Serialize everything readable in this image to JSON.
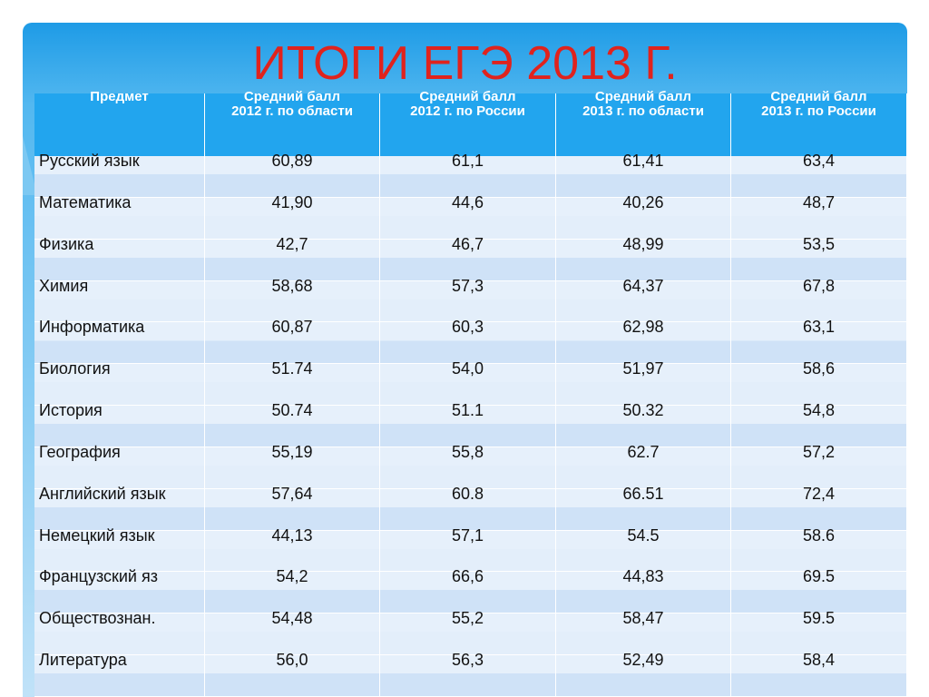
{
  "title": "ИТОГИ ЕГЭ 2013 Г.",
  "table": {
    "header": [
      [
        "Предмет"
      ],
      [
        "Средний балл",
        "2012 г. по области"
      ],
      [
        "Средний балл",
        "2012 г. по России"
      ],
      [
        "Средний балл",
        "2013 г. по области"
      ],
      [
        "Средний балл",
        "2013 г. по России"
      ]
    ],
    "rows": [
      [
        "Русский язык",
        "60,89",
        "61,1",
        "61,41",
        "63,4"
      ],
      [
        "Математика",
        "41,90",
        "44,6",
        "40,26",
        "48,7"
      ],
      [
        "Физика",
        "42,7",
        "46,7",
        "48,99",
        "53,5"
      ],
      [
        "Химия",
        "58,68",
        "57,3",
        "64,37",
        "67,8"
      ],
      [
        "Информатика",
        "60,87",
        "60,3",
        "62,98",
        "63,1"
      ],
      [
        "Биология",
        "51.74",
        "54,0",
        "51,97",
        "58,6"
      ],
      [
        "История",
        "50.74",
        "51.1",
        "50.32",
        "54,8"
      ],
      [
        "География",
        "55,19",
        "55,8",
        "62.7",
        "57,2"
      ],
      [
        "Английский язык",
        "57,64",
        "60.8",
        "66.51",
        "72,4"
      ],
      [
        "Немецкий язык",
        "44,13",
        "57,1",
        "54.5",
        "58.6"
      ],
      [
        "Французский яз",
        "54,2",
        "66,6",
        "44,83",
        "69.5"
      ],
      [
        "Обществознан.",
        "54,48",
        "55,2",
        "58,47",
        "59.5"
      ],
      [
        "Литература",
        "56,0",
        "56,3",
        "52,49",
        "58,4"
      ]
    ]
  }
}
